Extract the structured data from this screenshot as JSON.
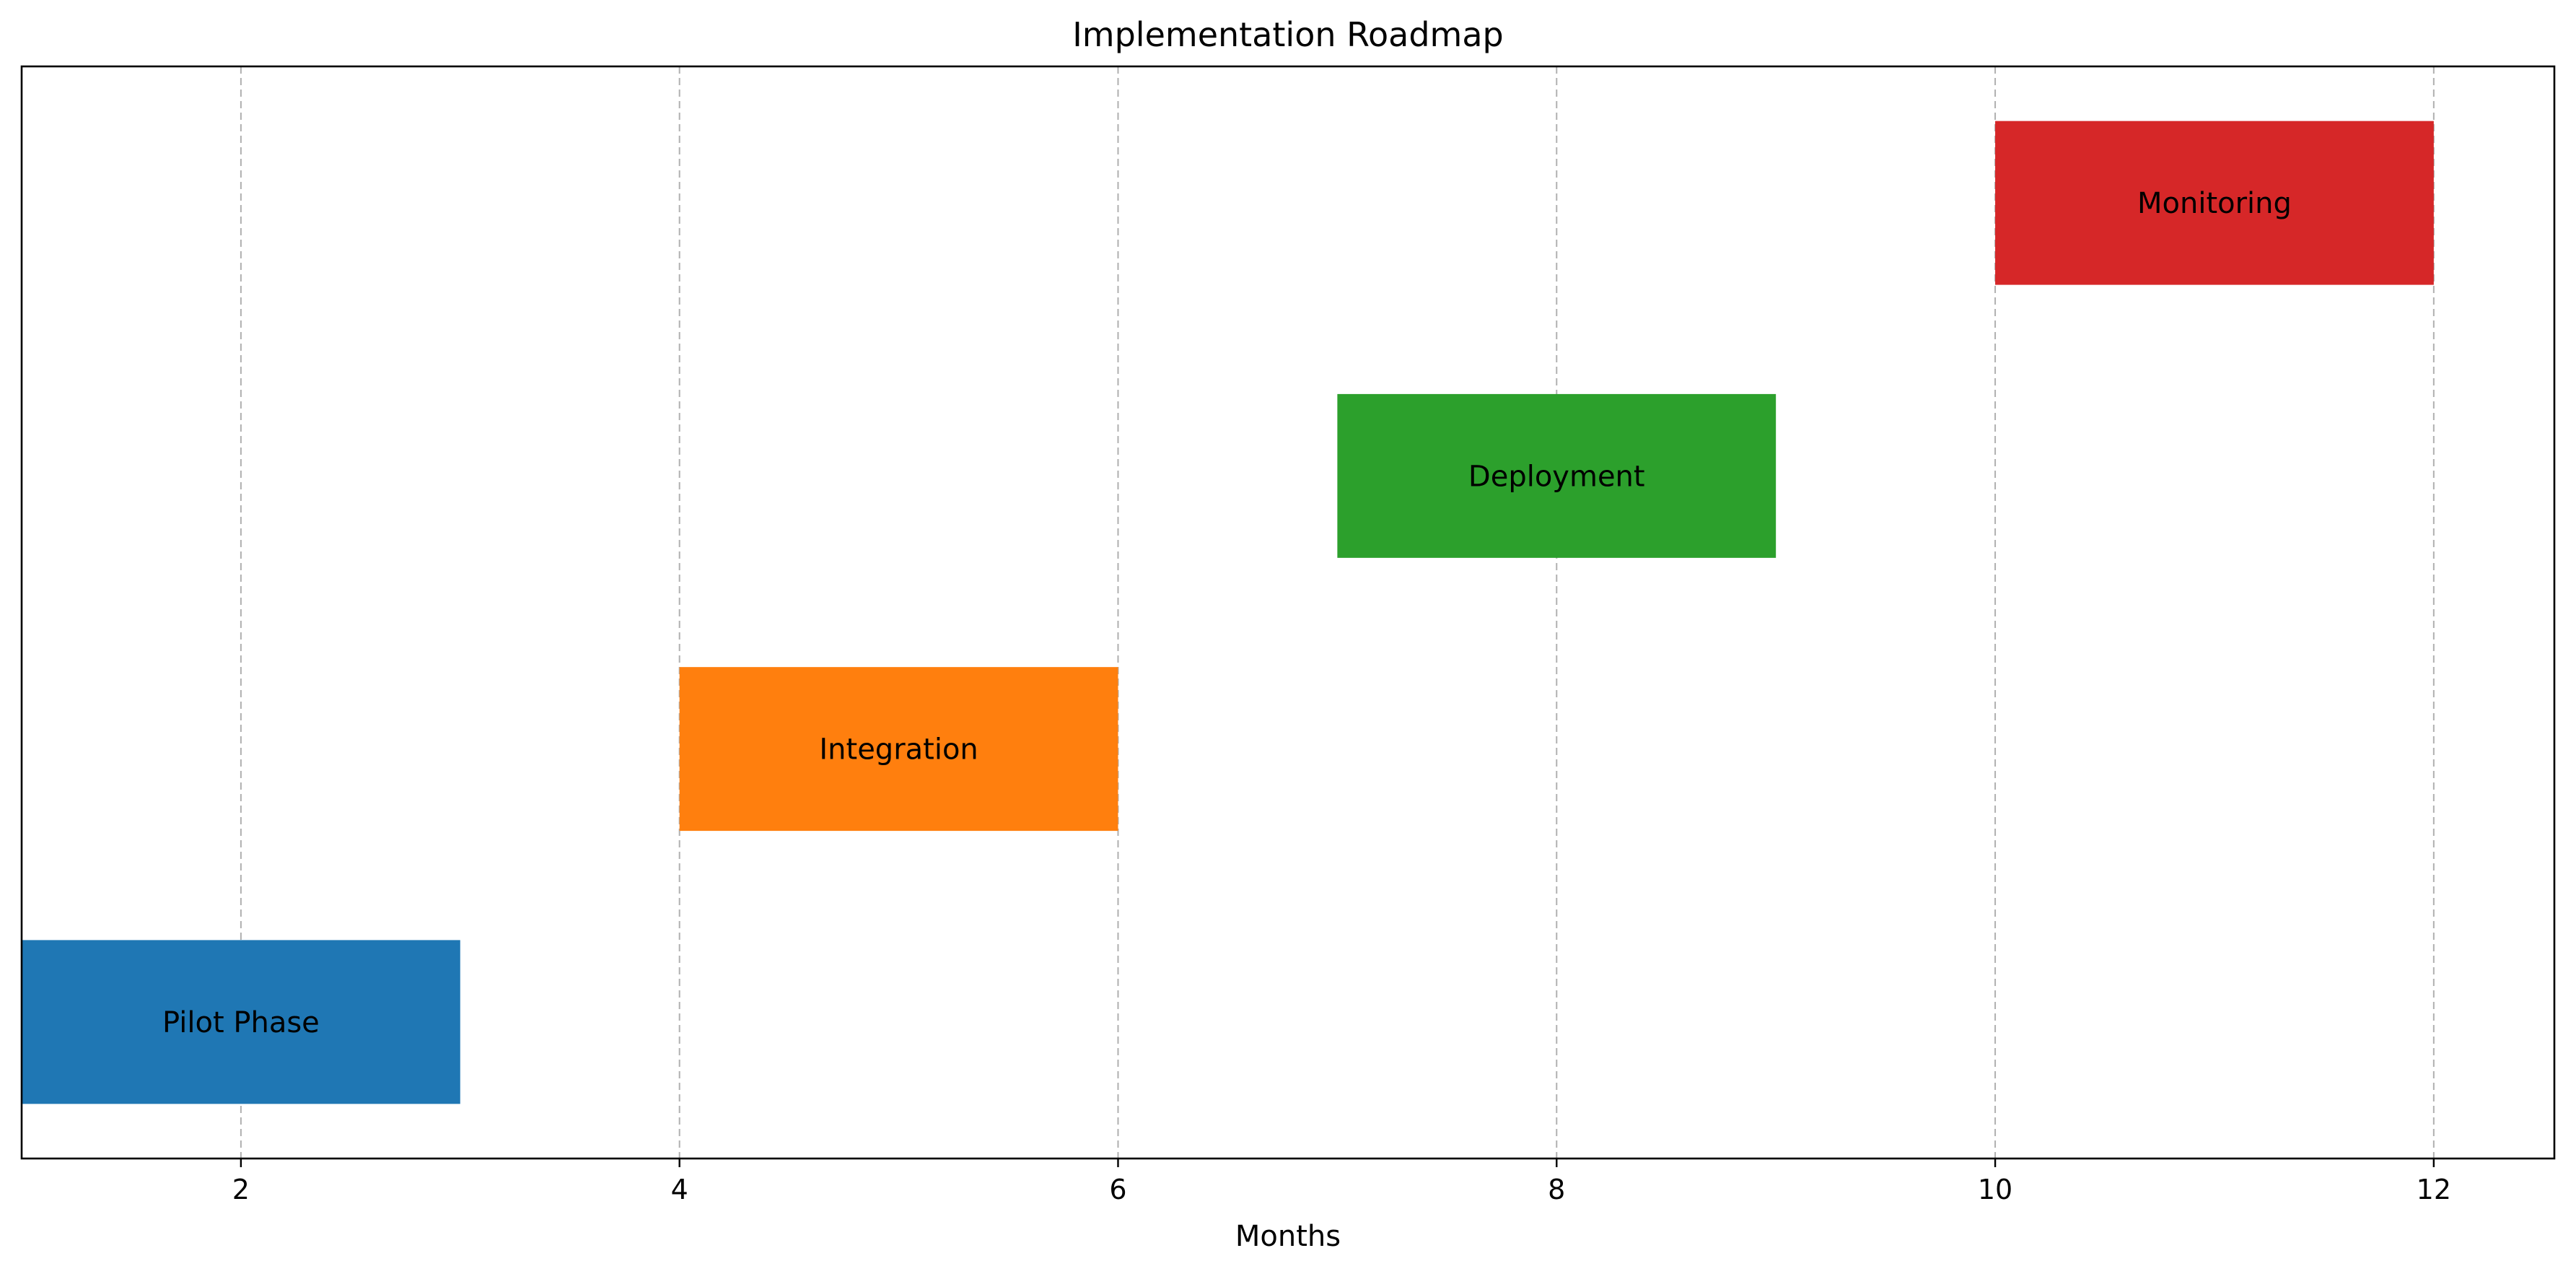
{
  "chart_data": {
    "type": "bar",
    "orientation": "horizontal",
    "title": "Implementation Roadmap",
    "xlabel": "Months",
    "ylabel": "",
    "xlim": [
      1,
      12.55
    ],
    "xticks": [
      2,
      4,
      6,
      8,
      10,
      12
    ],
    "grid": {
      "x": true,
      "y": false,
      "style": "dashed"
    },
    "legend": "none",
    "tasks": [
      {
        "name": "Pilot Phase",
        "start": 1,
        "end": 3,
        "color": "#1f77b4"
      },
      {
        "name": "Integration",
        "start": 4,
        "end": 6,
        "color": "#ff7f0e"
      },
      {
        "name": "Deployment",
        "start": 7,
        "end": 9,
        "color": "#2ca02c"
      },
      {
        "name": "Monitoring",
        "start": 10,
        "end": 12,
        "color": "#d62728"
      }
    ]
  }
}
